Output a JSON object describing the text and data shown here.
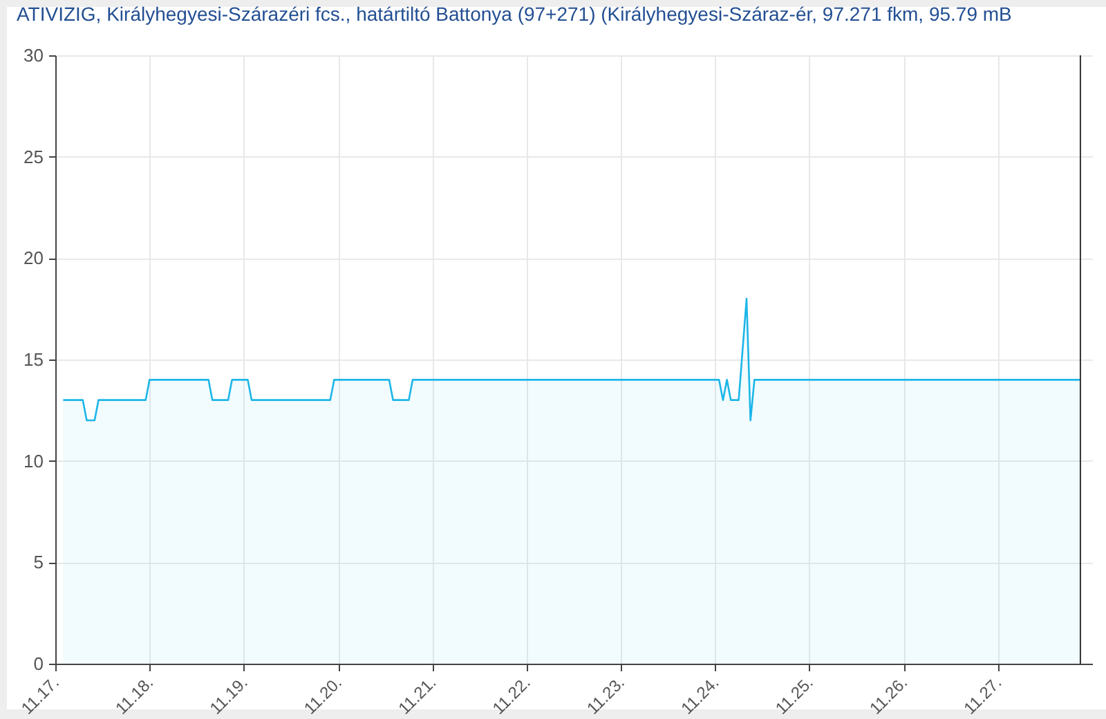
{
  "chart_data": {
    "type": "area",
    "title": "ATIVIZIG, Királyhegyesi-Szárazéri fcs., határtiltó Battonya (97+271) (Királyhegyesi-Száraz-ér, 97.271 fkm, 95.79 mB",
    "x": [
      "--11-17T02:00",
      "--11-17T07:00",
      "--11-17T08:00",
      "--11-17T10:00",
      "--11-17T11:00",
      "--11-17T23:00",
      "--11-18T00:00",
      "--11-18T15:00",
      "--11-18T16:00",
      "--11-18T20:00",
      "--11-18T21:00",
      "--11-19T01:00",
      "--11-19T02:00",
      "--11-19T22:00",
      "--11-19T23:00",
      "--11-20T13:00",
      "--11-20T14:00",
      "--11-20T18:00",
      "--11-20T19:00",
      "--11-24T01:00",
      "--11-24T02:00",
      "--11-24T03:00",
      "--11-24T04:00",
      "--11-24T06:00",
      "--11-24T08:00",
      "--11-24T09:00",
      "--11-24T10:00",
      "--11-27T21:00"
    ],
    "series": [
      {
        "color": "#1cb6e8",
        "values": [
          13,
          13,
          12,
          12,
          13,
          13,
          14,
          14,
          13,
          13,
          14,
          14,
          13,
          13,
          14,
          14,
          13,
          13,
          14,
          14,
          13,
          14,
          13,
          13,
          18,
          12,
          14,
          14
        ]
      }
    ],
    "xlim": [
      "--11-17",
      "--11-28"
    ],
    "xticks": [
      {
        "value": "--11-17",
        "label": "11.17."
      },
      {
        "value": "--11-18",
        "label": "11.18."
      },
      {
        "value": "--11-19",
        "label": "11.19."
      },
      {
        "value": "--11-20",
        "label": "11.20."
      },
      {
        "value": "--11-21",
        "label": "11.21."
      },
      {
        "value": "--11-22",
        "label": "11.22."
      },
      {
        "value": "--11-23",
        "label": "11.23."
      },
      {
        "value": "--11-24",
        "label": "11.24."
      },
      {
        "value": "--11-25",
        "label": "11.25."
      },
      {
        "value": "--11-26",
        "label": "11.26."
      },
      {
        "value": "--11-27",
        "label": "11.27."
      }
    ],
    "ylim": [
      0,
      30
    ],
    "yticks": [
      0,
      5,
      10,
      15,
      20,
      25,
      30
    ],
    "grid": true,
    "ref_lines": [
      {
        "axis": "x",
        "value": "--11-27T21:00",
        "color": "#333333"
      }
    ]
  }
}
